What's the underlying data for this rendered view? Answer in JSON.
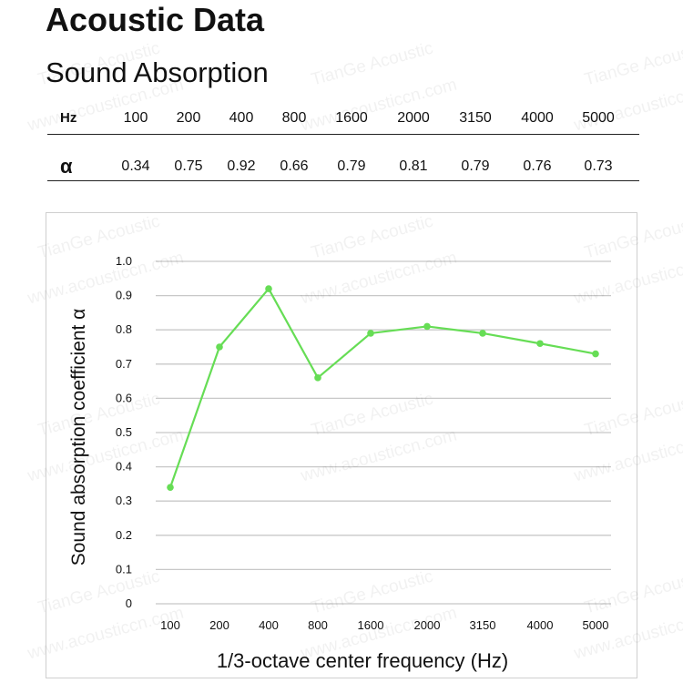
{
  "header": {
    "title": "Acoustic Data",
    "subtitle": "Sound Absorption"
  },
  "table": {
    "hz_label": "Hz",
    "alpha_label": "α",
    "frequencies": [
      "100",
      "200",
      "400",
      "800",
      "1600",
      "2000",
      "3150",
      "4000",
      "5000"
    ],
    "alphas": [
      "0.34",
      "0.75",
      "0.92",
      "0.66",
      "0.79",
      "0.81",
      "0.79",
      "0.76",
      "0.73"
    ]
  },
  "watermark": {
    "brand": "TianGe Acoustic",
    "url": "www.acousticcn.com"
  },
  "colors": {
    "series": "#66dd55",
    "grid": "#c8c8c8",
    "rule": "#222222"
  },
  "chart_data": {
    "type": "line",
    "categories": [
      "100",
      "200",
      "400",
      "800",
      "1600",
      "2000",
      "3150",
      "4000",
      "5000"
    ],
    "series": [
      {
        "values": [
          0.34,
          0.75,
          0.92,
          0.66,
          0.79,
          0.81,
          0.79,
          0.76,
          0.73
        ]
      }
    ],
    "ylabel": "Sound absorption coefficient α",
    "xlabel": "1/3-octave center frequency (Hz)",
    "ylim": [
      0,
      1.0
    ],
    "yticks": [
      "0",
      "0.1",
      "0.2",
      "0.3",
      "0.4",
      "0.5",
      "0.6",
      "0.7",
      "0.8",
      "0.9",
      "1.0"
    ],
    "grid": true,
    "legend": "none"
  }
}
